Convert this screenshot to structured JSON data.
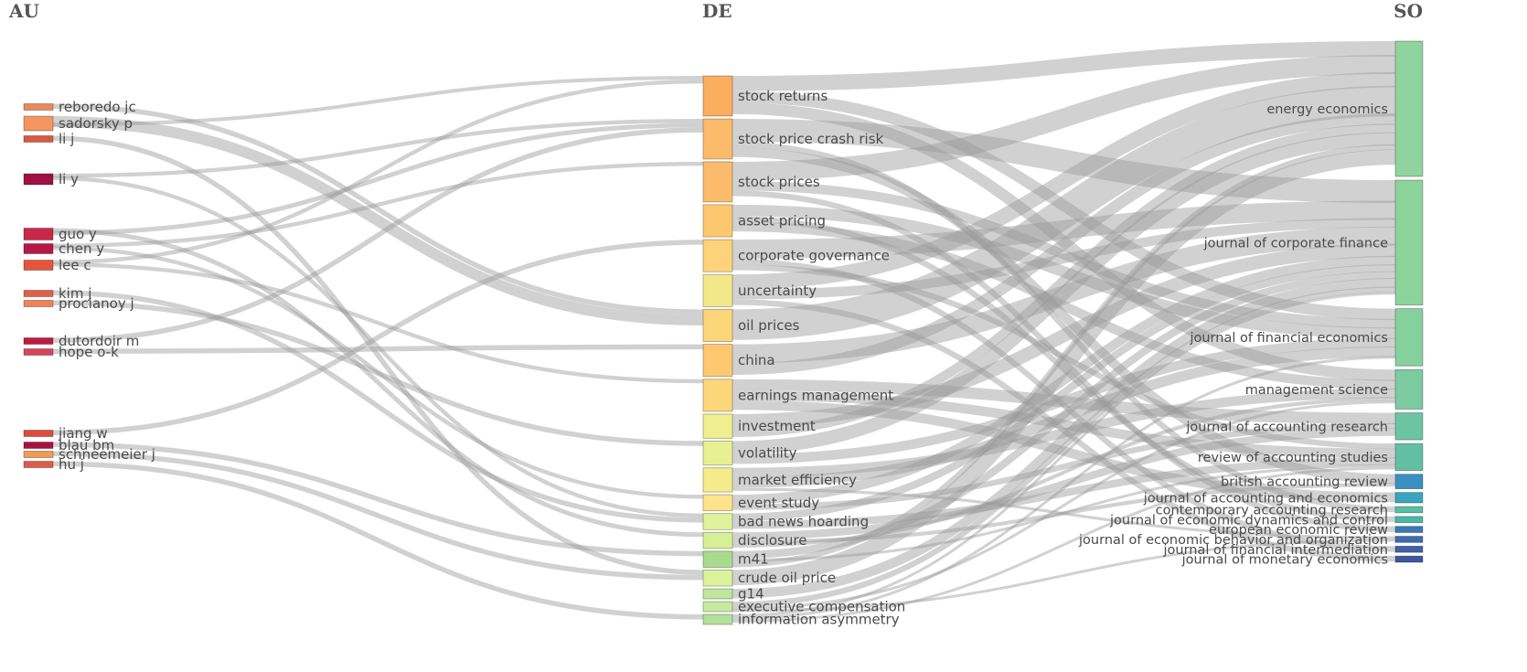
{
  "chart_data": {
    "type": "sankey",
    "title": "",
    "columns": [
      {
        "id": "AU",
        "header": "AU"
      },
      {
        "id": "DE",
        "header": "DE"
      },
      {
        "id": "SO",
        "header": "SO"
      }
    ],
    "nodes": {
      "AU": [
        {
          "id": "a_reboredo",
          "label": "reboredo jc",
          "value": 1.0,
          "color": "#e98a5d"
        },
        {
          "id": "a_sadorsky",
          "label": "sadorsky p",
          "value": 2.8,
          "color": "#f39662"
        },
        {
          "id": "a_lij",
          "label": "li j",
          "value": 1.0,
          "color": "#d85a3f"
        },
        {
          "id": "a_liy",
          "label": "li y",
          "value": 1.6,
          "color": "#a01043"
        },
        {
          "id": "a_guo",
          "label": "guo y",
          "value": 1.8,
          "color": "#c8284a"
        },
        {
          "id": "a_chen",
          "label": "chen y",
          "value": 1.6,
          "color": "#b41945"
        },
        {
          "id": "a_lee",
          "label": "lee c",
          "value": 1.6,
          "color": "#e4553b"
        },
        {
          "id": "a_kim",
          "label": "kim j",
          "value": 1.0,
          "color": "#e06046"
        },
        {
          "id": "a_procl",
          "label": "procianoy j",
          "value": 1.0,
          "color": "#f08358"
        },
        {
          "id": "a_dutor",
          "label": "dutordoir m",
          "value": 1.0,
          "color": "#c01a40"
        },
        {
          "id": "a_hope",
          "label": "hope o-k",
          "value": 1.0,
          "color": "#d6455a"
        },
        {
          "id": "a_jiang",
          "label": "jiang w",
          "value": 1.0,
          "color": "#df4b3e"
        },
        {
          "id": "a_blau",
          "label": "blau bm",
          "value": 1.0,
          "color": "#a8123e"
        },
        {
          "id": "a_schnee",
          "label": "schneemeier j",
          "value": 1.0,
          "color": "#f19a52"
        },
        {
          "id": "a_hu",
          "label": "hu j",
          "value": 1.0,
          "color": "#e05a4a"
        }
      ],
      "DE": [
        {
          "id": "d_sret",
          "label": "stock returns",
          "value": 4.0,
          "color": "#fbad60"
        },
        {
          "id": "d_spcr",
          "label": "stock price crash risk",
          "value": 4.0,
          "color": "#fcbb6a"
        },
        {
          "id": "d_sprc",
          "label": "stock prices",
          "value": 4.0,
          "color": "#fcbb6a"
        },
        {
          "id": "d_asset",
          "label": "asset pricing",
          "value": 3.2,
          "color": "#fdc770"
        },
        {
          "id": "d_corp",
          "label": "corporate governance",
          "value": 3.2,
          "color": "#fed27a"
        },
        {
          "id": "d_unc",
          "label": "uncertainty",
          "value": 3.2,
          "color": "#f2e88a"
        },
        {
          "id": "d_oil",
          "label": "oil prices",
          "value": 3.2,
          "color": "#fdd67a"
        },
        {
          "id": "d_china",
          "label": "china",
          "value": 3.2,
          "color": "#fdc870"
        },
        {
          "id": "d_earn",
          "label": "earnings management",
          "value": 3.2,
          "color": "#fdd67c"
        },
        {
          "id": "d_inv",
          "label": "investment",
          "value": 2.4,
          "color": "#f0ee8e"
        },
        {
          "id": "d_vol",
          "label": "volatility",
          "value": 2.4,
          "color": "#e9f092"
        },
        {
          "id": "d_meff",
          "label": "market efficiency",
          "value": 2.4,
          "color": "#f4ec8c"
        },
        {
          "id": "d_event",
          "label": "event study",
          "value": 1.6,
          "color": "#fde48a"
        },
        {
          "id": "d_bnh",
          "label": "bad news hoarding",
          "value": 1.6,
          "color": "#e2f29a"
        },
        {
          "id": "d_disc",
          "label": "disclosure",
          "value": 1.6,
          "color": "#d9ef96"
        },
        {
          "id": "d_m41",
          "label": "m41",
          "value": 1.6,
          "color": "#a8dc8c"
        },
        {
          "id": "d_crude",
          "label": "crude oil price",
          "value": 1.6,
          "color": "#daf29a"
        },
        {
          "id": "d_g14",
          "label": "g14",
          "value": 1.0,
          "color": "#bfe69a"
        },
        {
          "id": "d_exec",
          "label": "executive compensation",
          "value": 1.0,
          "color": "#c7e9a0"
        },
        {
          "id": "d_info",
          "label": "information asymmetry",
          "value": 1.0,
          "color": "#b4e09a"
        }
      ],
      "SO": [
        {
          "id": "s_energy",
          "label": "energy economics",
          "value": 13,
          "color": "#8fd49e"
        },
        {
          "id": "s_jcf",
          "label": "journal of corporate finance",
          "value": 12,
          "color": "#8cd39c"
        },
        {
          "id": "s_jfe",
          "label": "journal of financial economics",
          "value": 5.5,
          "color": "#86d09e"
        },
        {
          "id": "s_ms",
          "label": "management science",
          "value": 3.8,
          "color": "#7ccaa0"
        },
        {
          "id": "s_jar",
          "label": "journal of accounting research",
          "value": 2.6,
          "color": "#6cc4a2"
        },
        {
          "id": "s_ras",
          "label": "review of accounting studies",
          "value": 2.6,
          "color": "#63bfa2"
        },
        {
          "id": "s_bar",
          "label": "british accounting review",
          "value": 1.4,
          "color": "#3b8fc2"
        },
        {
          "id": "s_jae",
          "label": "journal of accounting and economics",
          "value": 1.0,
          "color": "#3aa5bd"
        },
        {
          "id": "s_car",
          "label": "contemporary accounting research",
          "value": 0.6,
          "color": "#55c0a6"
        },
        {
          "id": "s_jedc",
          "label": "journal of economic dynamics and control",
          "value": 0.6,
          "color": "#48b8a8"
        },
        {
          "id": "s_eer",
          "label": "european economic review",
          "value": 0.6,
          "color": "#3a78b8"
        },
        {
          "id": "s_jebo",
          "label": "journal of economic behavior and organization",
          "value": 0.6,
          "color": "#3d6bb0"
        },
        {
          "id": "s_jfi",
          "label": "journal of financial intermediation",
          "value": 0.6,
          "color": "#4160a8"
        },
        {
          "id": "s_jme",
          "label": "journal of monetary economics",
          "value": 0.6,
          "color": "#3f569f"
        }
      ]
    },
    "links": [
      {
        "source": "a_reboredo",
        "target": "d_oil",
        "value": 1.0
      },
      {
        "source": "a_sadorsky",
        "target": "d_oil",
        "value": 2.2
      },
      {
        "source": "a_sadorsky",
        "target": "d_sret",
        "value": 0.6
      },
      {
        "source": "a_lij",
        "target": "d_crude",
        "value": 1.0
      },
      {
        "source": "a_liy",
        "target": "d_spcr",
        "value": 0.8
      },
      {
        "source": "a_liy",
        "target": "d_bnh",
        "value": 0.8
      },
      {
        "source": "a_guo",
        "target": "d_disc",
        "value": 0.9
      },
      {
        "source": "a_guo",
        "target": "d_spcr",
        "value": 0.9
      },
      {
        "source": "a_chen",
        "target": "d_sprc",
        "value": 0.8
      },
      {
        "source": "a_chen",
        "target": "d_event",
        "value": 0.8
      },
      {
        "source": "a_lee",
        "target": "d_sret",
        "value": 0.8
      },
      {
        "source": "a_lee",
        "target": "d_earn",
        "value": 0.8
      },
      {
        "source": "a_kim",
        "target": "d_bnh",
        "value": 1.0
      },
      {
        "source": "a_procl",
        "target": "d_vol",
        "value": 1.0
      },
      {
        "source": "a_dutor",
        "target": "d_spcr",
        "value": 1.0
      },
      {
        "source": "a_hope",
        "target": "d_china",
        "value": 1.0
      },
      {
        "source": "a_jiang",
        "target": "d_corp",
        "value": 1.0
      },
      {
        "source": "a_blau",
        "target": "d_m41",
        "value": 1.0
      },
      {
        "source": "a_schnee",
        "target": "d_crude",
        "value": 1.0
      },
      {
        "source": "a_hu",
        "target": "d_info",
        "value": 1.0
      },
      {
        "source": "d_sret",
        "target": "s_energy",
        "value": 1.6
      },
      {
        "source": "d_sret",
        "target": "s_jfe",
        "value": 1.2
      },
      {
        "source": "d_sret",
        "target": "s_ms",
        "value": 1.2
      },
      {
        "source": "d_spcr",
        "target": "s_jcf",
        "value": 2.4
      },
      {
        "source": "d_spcr",
        "target": "s_car",
        "value": 0.6
      },
      {
        "source": "d_spcr",
        "target": "s_bar",
        "value": 1.0
      },
      {
        "source": "d_sprc",
        "target": "s_energy",
        "value": 2.0
      },
      {
        "source": "d_sprc",
        "target": "s_jfe",
        "value": 1.0
      },
      {
        "source": "d_sprc",
        "target": "s_eer",
        "value": 0.6
      },
      {
        "source": "d_asset",
        "target": "s_jfe",
        "value": 1.2
      },
      {
        "source": "d_asset",
        "target": "s_jedc",
        "value": 0.6
      },
      {
        "source": "d_asset",
        "target": "s_ms",
        "value": 1.0
      },
      {
        "source": "d_corp",
        "target": "s_jcf",
        "value": 2.0
      },
      {
        "source": "d_corp",
        "target": "s_jfi",
        "value": 0.6
      },
      {
        "source": "d_corp",
        "target": "s_ras",
        "value": 0.6
      },
      {
        "source": "d_unc",
        "target": "s_energy",
        "value": 1.6
      },
      {
        "source": "d_unc",
        "target": "s_jcf",
        "value": 1.0
      },
      {
        "source": "d_unc",
        "target": "s_jme",
        "value": 0.6
      },
      {
        "source": "d_oil",
        "target": "s_energy",
        "value": 3.2
      },
      {
        "source": "d_china",
        "target": "s_jcf",
        "value": 2.0
      },
      {
        "source": "d_china",
        "target": "s_energy",
        "value": 1.2
      },
      {
        "source": "d_earn",
        "target": "s_jar",
        "value": 1.2
      },
      {
        "source": "d_earn",
        "target": "s_ras",
        "value": 1.0
      },
      {
        "source": "d_earn",
        "target": "s_jae",
        "value": 1.0
      },
      {
        "source": "d_inv",
        "target": "s_jcf",
        "value": 1.4
      },
      {
        "source": "d_inv",
        "target": "s_energy",
        "value": 1.0
      },
      {
        "source": "d_vol",
        "target": "s_energy",
        "value": 1.4
      },
      {
        "source": "d_vol",
        "target": "s_jfe",
        "value": 1.0
      },
      {
        "source": "d_meff",
        "target": "s_ms",
        "value": 1.0
      },
      {
        "source": "d_meff",
        "target": "s_jfe",
        "value": 1.1
      },
      {
        "source": "d_meff",
        "target": "s_jebo",
        "value": 0.3
      },
      {
        "source": "d_event",
        "target": "s_jcf",
        "value": 1.0
      },
      {
        "source": "d_event",
        "target": "s_jar",
        "value": 0.6
      },
      {
        "source": "d_bnh",
        "target": "s_jcf",
        "value": 0.8
      },
      {
        "source": "d_bnh",
        "target": "s_ras",
        "value": 0.8
      },
      {
        "source": "d_disc",
        "target": "s_jar",
        "value": 0.8
      },
      {
        "source": "d_disc",
        "target": "s_bar",
        "value": 0.4
      },
      {
        "source": "d_disc",
        "target": "s_ms",
        "value": 0.4
      },
      {
        "source": "d_m41",
        "target": "s_jcf",
        "value": 0.8
      },
      {
        "source": "d_m41",
        "target": "s_ras",
        "value": 0.2
      },
      {
        "source": "d_m41",
        "target": "s_energy",
        "value": 0.6
      },
      {
        "source": "d_crude",
        "target": "s_energy",
        "value": 1.6
      },
      {
        "source": "d_g14",
        "target": "s_jcf",
        "value": 1.0
      },
      {
        "source": "d_exec",
        "target": "s_jcf",
        "value": 0.6
      },
      {
        "source": "d_exec",
        "target": "s_ms",
        "value": 0.2
      },
      {
        "source": "d_exec",
        "target": "s_jebo",
        "value": 0.2
      },
      {
        "source": "d_info",
        "target": "s_jcf",
        "value": 0.0
      },
      {
        "source": "d_info",
        "target": "s_jfe",
        "value": 0.0
      },
      {
        "source": "d_info",
        "target": "s_ras",
        "value": 0.0
      }
    ]
  }
}
